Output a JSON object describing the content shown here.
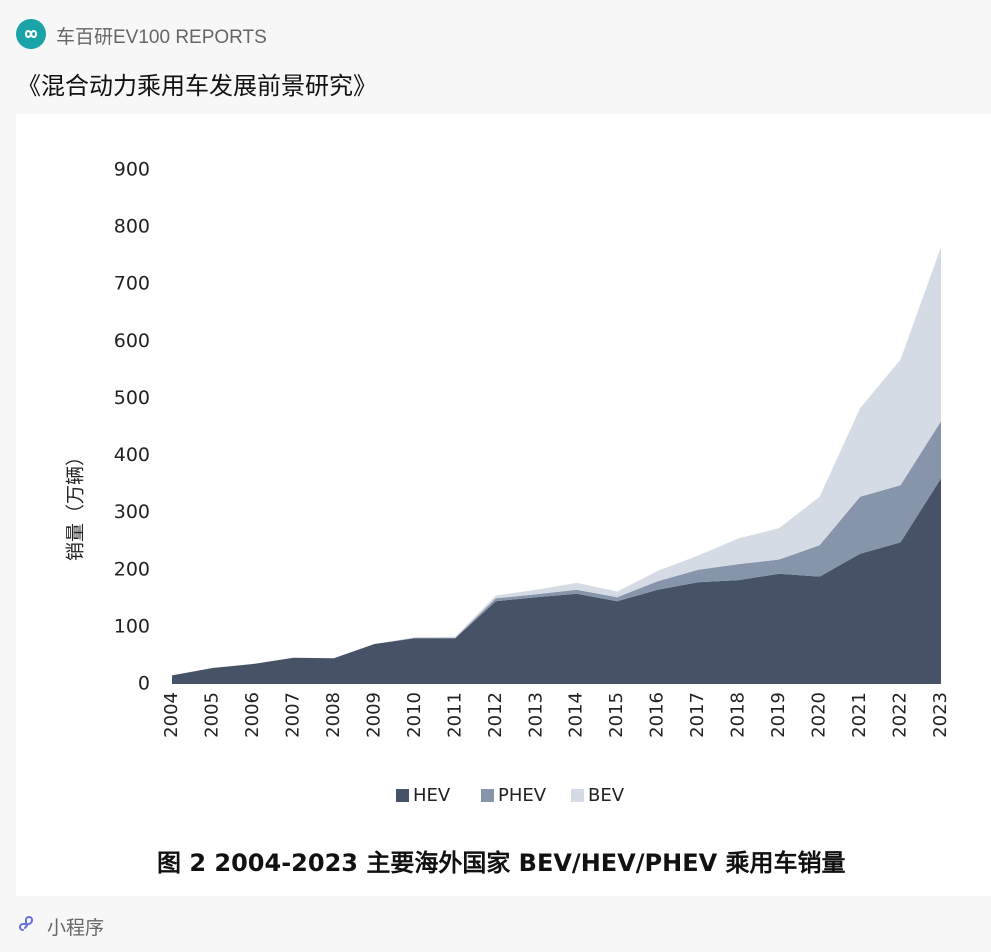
{
  "header": {
    "source": "车百研EV100 REPORTS",
    "logo_text": "车百研",
    "title": "《混合动力乘用车发展前景研究》"
  },
  "footer": {
    "mini_program_label": "小程序"
  },
  "colors": {
    "HEV": "#465266",
    "PHEV": "#8795aa",
    "BEV": "#d5dbe4"
  },
  "chart_data": {
    "type": "area",
    "stacked": true,
    "title": "图 2 2004-2023 主要海外国家 BEV/HEV/PHEV 乘用车销量",
    "xlabel": "",
    "ylabel": "销量（万辆）",
    "ylim": [
      0,
      900
    ],
    "yticks": [
      0,
      100,
      200,
      300,
      400,
      500,
      600,
      700,
      800,
      900
    ],
    "grid": false,
    "legend_position": "bottom",
    "x": [
      2004,
      2005,
      2006,
      2007,
      2008,
      2009,
      2010,
      2011,
      2012,
      2013,
      2014,
      2015,
      2016,
      2017,
      2018,
      2019,
      2020,
      2021,
      2022,
      2023
    ],
    "series": [
      {
        "name": "HEV",
        "values": [
          15,
          28,
          35,
          46,
          45,
          70,
          80,
          80,
          145,
          152,
          158,
          145,
          165,
          178,
          182,
          193,
          188,
          228,
          248,
          360
        ]
      },
      {
        "name": "PHEV",
        "values": [
          0,
          0,
          0,
          0,
          0,
          0,
          1,
          1,
          5,
          5,
          7,
          7,
          15,
          22,
          28,
          25,
          55,
          100,
          100,
          100
        ]
      },
      {
        "name": "BEV",
        "values": [
          0,
          0,
          0,
          0,
          0,
          0,
          1,
          2,
          5,
          8,
          12,
          10,
          18,
          25,
          45,
          55,
          85,
          155,
          220,
          305
        ]
      }
    ]
  }
}
